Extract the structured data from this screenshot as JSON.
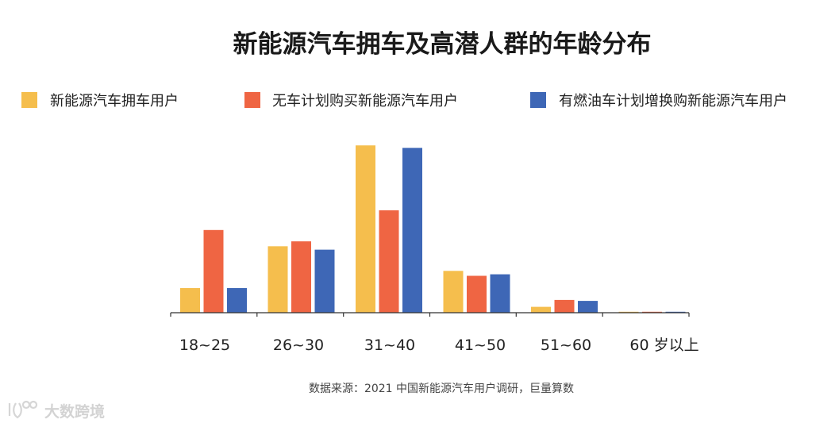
{
  "chart_data": {
    "type": "bar",
    "title": "新能源汽车拥车及高潜人群的年龄分布",
    "categories": [
      "18~25",
      "26~30",
      "31~40",
      "41~50",
      "51~60",
      "60 岁以上"
    ],
    "series": [
      {
        "name": "新能源汽车拥车用户",
        "color": "#F5BE4D",
        "values": [
          5,
          13.5,
          34,
          8.5,
          1.2,
          0.1
        ]
      },
      {
        "name": "无车计划购买新能源汽车用户",
        "color": "#EF6543",
        "values": [
          16.8,
          14.5,
          20.8,
          7.5,
          2.6,
          0.1
        ]
      },
      {
        "name": "有燃油车计划增换购新能源汽车用户",
        "color": "#3E67B6",
        "values": [
          5,
          12.8,
          33.5,
          7.8,
          2.4,
          0.2
        ]
      }
    ],
    "xlabel": "",
    "ylabel": "",
    "ylim": [
      0,
      35
    ],
    "legend_position": "top",
    "source": "数据来源：2021 中国新能源汽车用户调研，巨量算数"
  },
  "watermark": "大数跨境"
}
